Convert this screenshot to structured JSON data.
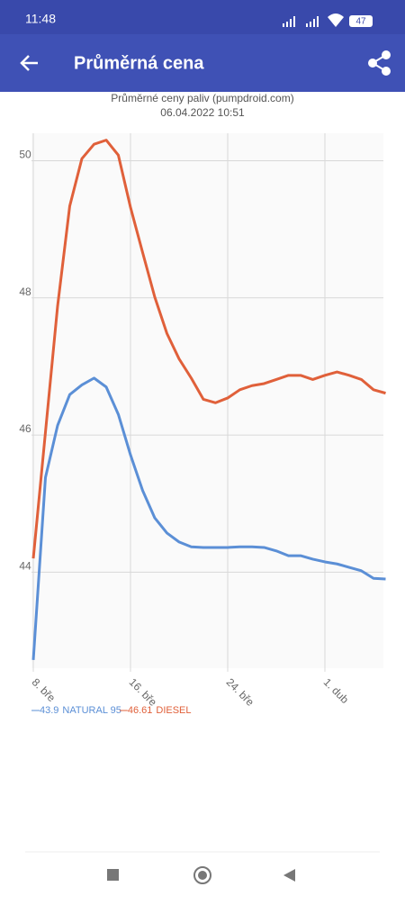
{
  "status_bar": {
    "time": "11:48",
    "battery": "47"
  },
  "app_bar": {
    "title": "Průměrná cena"
  },
  "chart_data": {
    "type": "line",
    "title": "Průměrné ceny paliv (pumpdroid.com)",
    "subtitle": "06.04.2022 10:51",
    "categories": [
      "8. bře",
      null,
      null,
      null,
      null,
      null,
      null,
      null,
      "16. bře",
      null,
      null,
      null,
      null,
      null,
      null,
      null,
      "24. bře",
      null,
      null,
      null,
      null,
      null,
      null,
      null,
      "1. dub",
      null,
      null,
      null,
      null,
      null
    ],
    "series": [
      {
        "name": "NATURAL 95",
        "color": "#5b8fd6",
        "values": [
          42.72,
          45.38,
          46.14,
          46.59,
          46.73,
          46.83,
          46.7,
          46.3,
          45.71,
          45.19,
          44.79,
          44.57,
          44.44,
          44.37,
          44.36,
          44.36,
          44.36,
          44.37,
          44.37,
          44.36,
          44.31,
          44.24,
          44.24,
          44.19,
          44.15,
          44.12,
          44.07,
          44.02,
          43.91,
          43.9
        ]
      },
      {
        "name": "DIESEL",
        "color": "#e0603a",
        "values": [
          44.2,
          46.04,
          47.88,
          49.34,
          50.03,
          50.24,
          50.3,
          50.08,
          49.32,
          48.66,
          48.01,
          47.48,
          47.11,
          46.83,
          46.52,
          46.47,
          46.54,
          46.66,
          46.72,
          46.75,
          46.81,
          46.87,
          46.87,
          46.81,
          46.87,
          46.92,
          46.87,
          46.81,
          46.66,
          46.61
        ]
      }
    ],
    "ylim": [
      42.6,
      50.4
    ],
    "yticks": [
      44,
      46,
      48,
      50
    ],
    "grid": true
  }
}
